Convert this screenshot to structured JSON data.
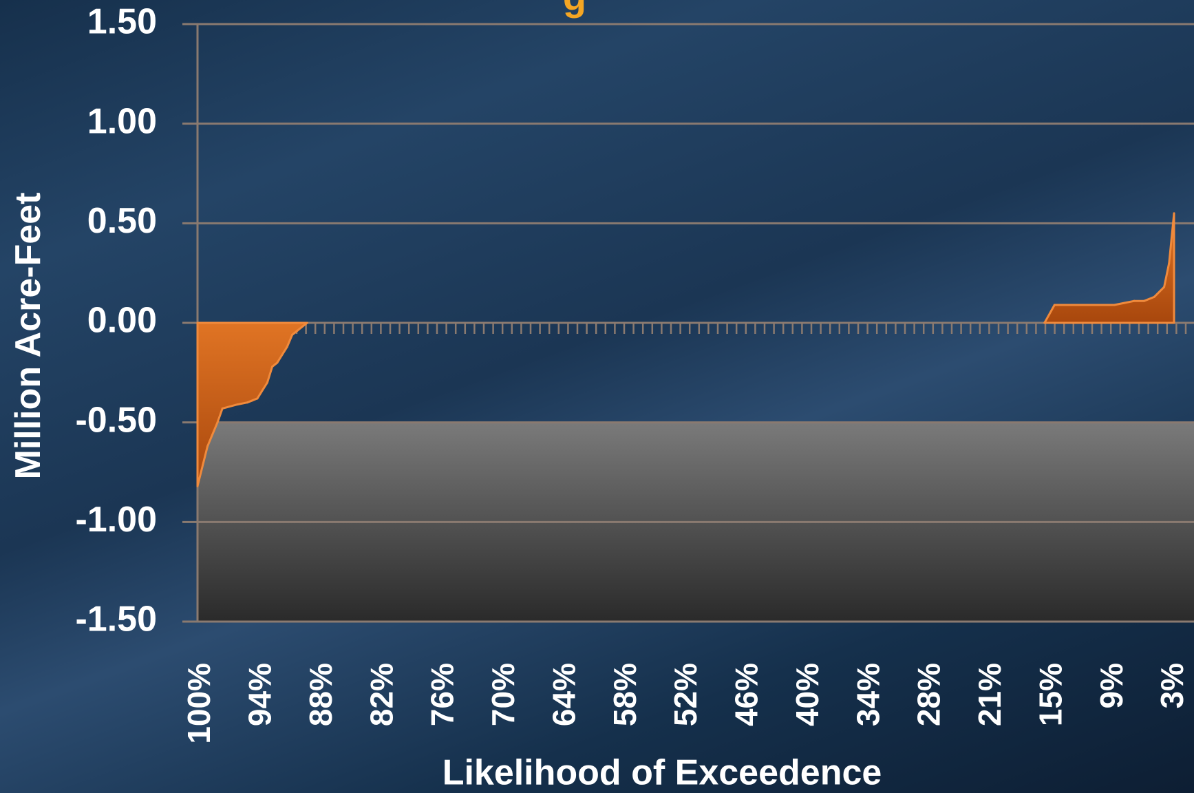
{
  "chart_data": {
    "type": "area",
    "title": "g",
    "xlabel": "Likelihood of Exceedence",
    "ylabel": "Million Acre-Feet",
    "ylim": [
      -1.5,
      1.5
    ],
    "y_ticks": [
      "1.50",
      "1.00",
      "0.50",
      "0.00",
      "-0.50",
      "-1.00",
      "-1.50"
    ],
    "y_tick_values": [
      1.5,
      1.0,
      0.5,
      0.0,
      -0.5,
      -1.0,
      -1.5
    ],
    "x_tick_labels": [
      "100%",
      "94%",
      "88%",
      "82%",
      "76%",
      "70%",
      "64%",
      "58%",
      "52%",
      "46%",
      "40%",
      "34%",
      "28%",
      "21%",
      "15%",
      "9%",
      "3%"
    ],
    "x_range": [
      100,
      0
    ],
    "grid": true,
    "floor_band": {
      "from": -1.5,
      "to": -0.5
    },
    "colors": {
      "series": "#c85a12",
      "series_edge": "#f08a3c",
      "band_top": "#7a7a7a",
      "band_bottom": "#2a2a2a",
      "grid": "#8a7a70",
      "title": "#f5a623"
    },
    "series": [
      {
        "x": [
          100,
          99,
          98,
          97.5,
          96,
          95,
          94.5,
          94,
          93,
          92.5,
          92,
          91,
          90.5,
          90,
          89
        ],
        "values": [
          -0.82,
          -0.62,
          -0.5,
          -0.43,
          -0.41,
          -0.4,
          -0.39,
          -0.38,
          -0.3,
          -0.22,
          -0.2,
          -0.12,
          -0.06,
          -0.04,
          0.0
        ]
      },
      {
        "x": [
          15,
          14,
          12,
          10,
          8,
          7,
          6,
          5,
          4,
          3,
          2.5,
          2
        ],
        "values": [
          0.0,
          0.09,
          0.09,
          0.09,
          0.09,
          0.1,
          0.11,
          0.11,
          0.13,
          0.18,
          0.3,
          0.55
        ]
      }
    ]
  }
}
